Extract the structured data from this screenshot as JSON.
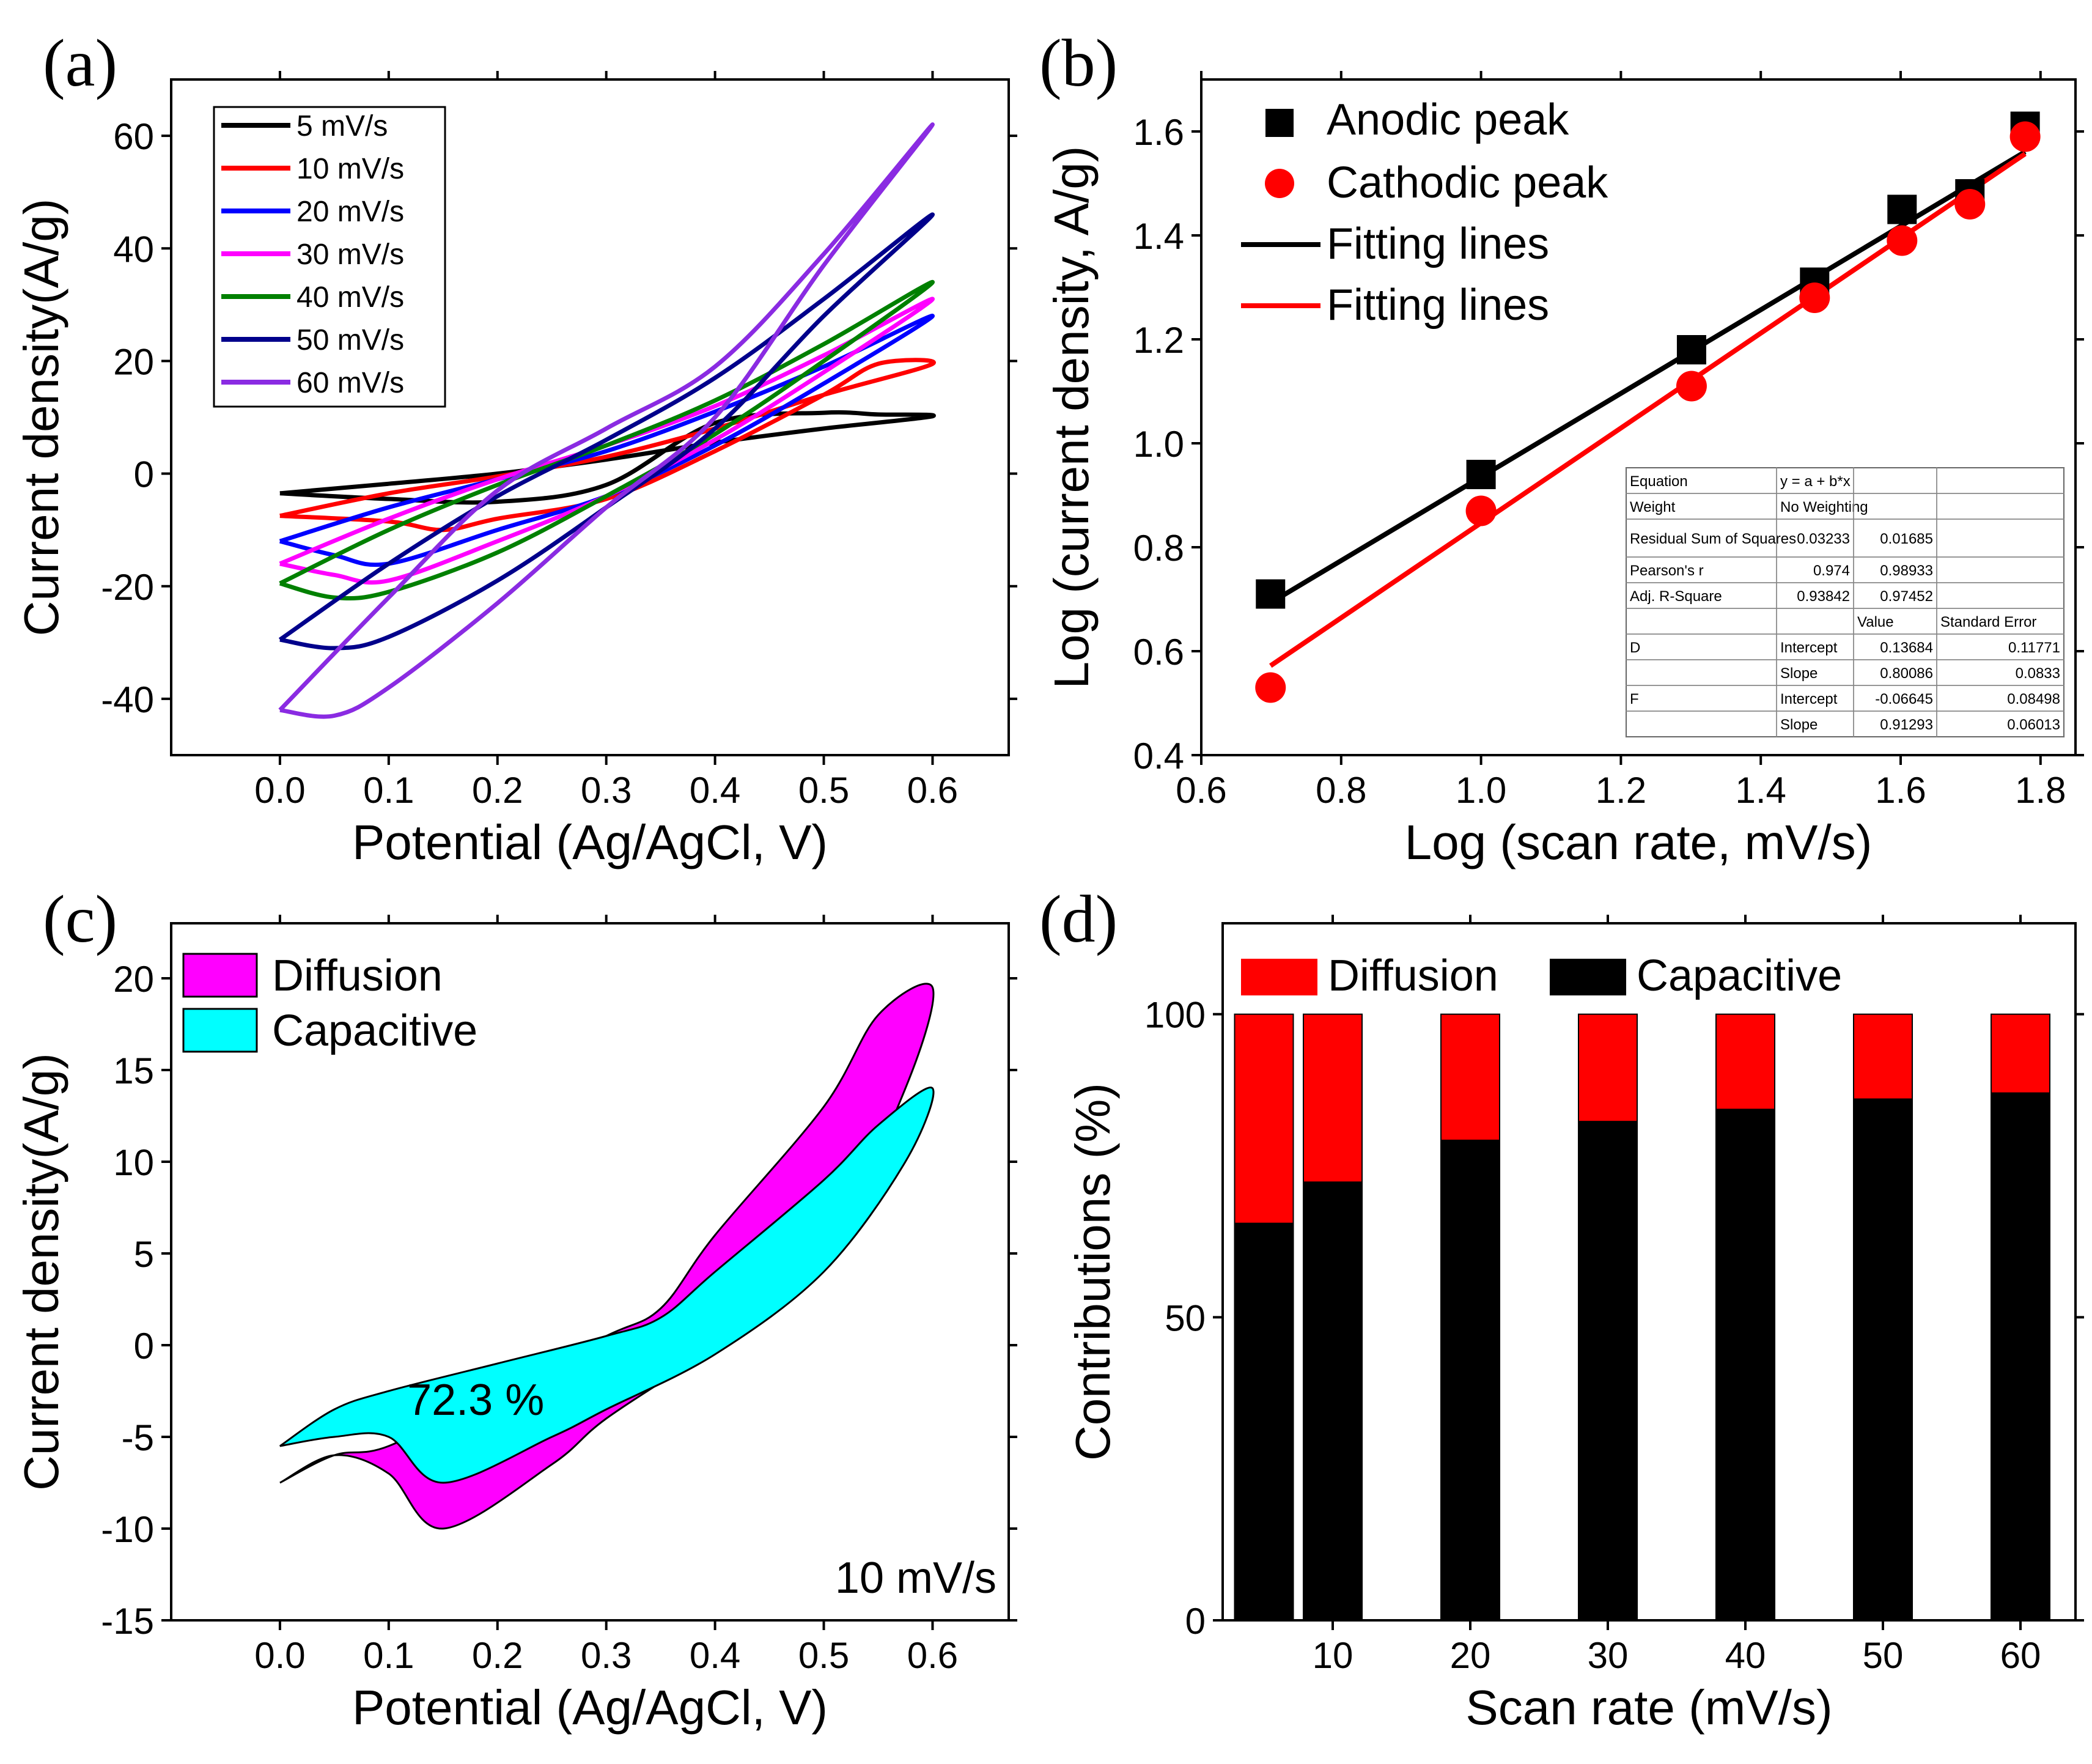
{
  "figure": {
    "panels": [
      "(a)",
      "(b)",
      "(c)",
      "(d)"
    ]
  },
  "chart_data": [
    {
      "panel": "(a)",
      "type": "line",
      "title": "",
      "xlabel": "Potential (Ag/AgCl, V)",
      "ylabel": "Current density(A/g)",
      "xlim": [
        -0.1,
        0.67
      ],
      "ylim": [
        -50,
        70
      ],
      "xticks": [
        "0.0",
        "0.1",
        "0.2",
        "0.3",
        "0.4",
        "0.5",
        "0.6"
      ],
      "yticks": [
        "-40",
        "-20",
        "0",
        "20",
        "40",
        "60"
      ],
      "legend_position": "top-left",
      "series": [
        {
          "name": "5 mV/s",
          "color": "#000000",
          "vertex": [
            0.6,
            10.2
          ],
          "start": -3.5,
          "upper": [
            [
              0.0,
              -3.5
            ],
            [
              0.1,
              -1.8
            ],
            [
              0.2,
              0.0
            ],
            [
              0.3,
              2.5
            ],
            [
              0.4,
              5.5
            ],
            [
              0.5,
              8
            ],
            [
              0.6,
              10.2
            ]
          ],
          "lower": [
            [
              0.6,
              10.2
            ],
            [
              0.55,
              10.5
            ],
            [
              0.5,
              10.8
            ],
            [
              0.4,
              9
            ],
            [
              0.3,
              -2
            ],
            [
              0.2,
              -5
            ],
            [
              0.1,
              -4.5
            ],
            [
              0.0,
              -3.5
            ]
          ]
        },
        {
          "name": "10 mV/s",
          "color": "#ff0000",
          "vertex": [
            0.6,
            19.5
          ],
          "start": -7.5,
          "upper": [
            [
              0.0,
              -7.5
            ],
            [
              0.1,
              -3.5
            ],
            [
              0.2,
              -0.5
            ],
            [
              0.3,
              3
            ],
            [
              0.4,
              8
            ],
            [
              0.5,
              14
            ],
            [
              0.6,
              19.5
            ]
          ],
          "lower": [
            [
              0.6,
              19.5
            ],
            [
              0.55,
              19.5
            ],
            [
              0.5,
              14
            ],
            [
              0.4,
              4
            ],
            [
              0.3,
              -4.5
            ],
            [
              0.2,
              -8
            ],
            [
              0.15,
              -10
            ],
            [
              0.1,
              -8.5
            ],
            [
              0.0,
              -7.5
            ]
          ]
        },
        {
          "name": "20 mV/s",
          "color": "#0000ff",
          "vertex": [
            0.6,
            28
          ],
          "start": -12,
          "upper": [
            [
              0.0,
              -12
            ],
            [
              0.1,
              -6
            ],
            [
              0.2,
              -1
            ],
            [
              0.3,
              4
            ],
            [
              0.4,
              11
            ],
            [
              0.5,
              19
            ],
            [
              0.6,
              28
            ]
          ],
          "lower": [
            [
              0.6,
              28
            ],
            [
              0.5,
              16
            ],
            [
              0.4,
              5
            ],
            [
              0.3,
              -4
            ],
            [
              0.2,
              -10
            ],
            [
              0.1,
              -16
            ],
            [
              0.05,
              -14.5
            ],
            [
              0.0,
              -12
            ]
          ]
        },
        {
          "name": "30 mV/s",
          "color": "#ff00ff",
          "vertex": [
            0.6,
            31
          ],
          "start": -16,
          "upper": [
            [
              0.0,
              -16
            ],
            [
              0.1,
              -8
            ],
            [
              0.2,
              -1
            ],
            [
              0.3,
              5
            ],
            [
              0.4,
              12
            ],
            [
              0.5,
              21
            ],
            [
              0.6,
              31
            ]
          ],
          "lower": [
            [
              0.6,
              31
            ],
            [
              0.5,
              18
            ],
            [
              0.4,
              6
            ],
            [
              0.3,
              -4
            ],
            [
              0.2,
              -12
            ],
            [
              0.1,
              -19
            ],
            [
              0.05,
              -18
            ],
            [
              0.0,
              -16
            ]
          ]
        },
        {
          "name": "40 mV/s",
          "color": "#008000",
          "vertex": [
            0.6,
            34
          ],
          "start": -19.5,
          "upper": [
            [
              0.0,
              -19.5
            ],
            [
              0.1,
              -10
            ],
            [
              0.2,
              -2
            ],
            [
              0.3,
              5
            ],
            [
              0.4,
              13
            ],
            [
              0.5,
              23
            ],
            [
              0.6,
              34
            ]
          ],
          "lower": [
            [
              0.6,
              34
            ],
            [
              0.5,
              20
            ],
            [
              0.4,
              7
            ],
            [
              0.3,
              -4
            ],
            [
              0.2,
              -14
            ],
            [
              0.1,
              -21
            ],
            [
              0.05,
              -22
            ],
            [
              0.0,
              -19.5
            ]
          ]
        },
        {
          "name": "50 mV/s",
          "color": "#00008b",
          "vertex": [
            0.6,
            46
          ],
          "start": -29.5,
          "upper": [
            [
              0.0,
              -29.5
            ],
            [
              0.1,
              -16
            ],
            [
              0.2,
              -4
            ],
            [
              0.3,
              6
            ],
            [
              0.4,
              17
            ],
            [
              0.5,
              31
            ],
            [
              0.6,
              46
            ]
          ],
          "lower": [
            [
              0.6,
              46
            ],
            [
              0.5,
              28
            ],
            [
              0.4,
              8
            ],
            [
              0.3,
              -6
            ],
            [
              0.2,
              -19
            ],
            [
              0.1,
              -29
            ],
            [
              0.05,
              -31
            ],
            [
              0.0,
              -29.5
            ]
          ]
        },
        {
          "name": "60 mV/s",
          "color": "#8a2be2",
          "vertex": [
            0.6,
            62
          ],
          "start": -42,
          "upper": [
            [
              0.0,
              -42
            ],
            [
              0.1,
              -22
            ],
            [
              0.2,
              -3
            ],
            [
              0.3,
              8
            ],
            [
              0.4,
              19
            ],
            [
              0.5,
              39
            ],
            [
              0.6,
              62
            ]
          ],
          "lower": [
            [
              0.6,
              62
            ],
            [
              0.5,
              37
            ],
            [
              0.4,
              10
            ],
            [
              0.3,
              -6
            ],
            [
              0.2,
              -23
            ],
            [
              0.1,
              -38
            ],
            [
              0.05,
              -43
            ],
            [
              0.0,
              -42
            ]
          ]
        }
      ]
    },
    {
      "panel": "(b)",
      "type": "scatter",
      "title": "",
      "xlabel": "Log (scan rate, mV/s)",
      "ylabel": "Log (current density, A/g)",
      "xlim": [
        0.6,
        1.85
      ],
      "ylim": [
        0.4,
        1.7
      ],
      "xticks": [
        "0.6",
        "0.8",
        "1.0",
        "1.2",
        "1.4",
        "1.6",
        "1.8"
      ],
      "yticks": [
        "0.4",
        "0.6",
        "0.8",
        "1.0",
        "1.2",
        "1.4",
        "1.6"
      ],
      "legend_position": "top-left",
      "series": [
        {
          "name": "Anodic peak",
          "marker": "square",
          "color": "#000000",
          "x": [
            0.699,
            1.0,
            1.301,
            1.477,
            1.602,
            1.699,
            1.778
          ],
          "y": [
            0.71,
            0.94,
            1.18,
            1.31,
            1.45,
            1.48,
            1.61
          ]
        },
        {
          "name": "Cathodic peak",
          "marker": "circle",
          "color": "#ff0000",
          "x": [
            0.699,
            1.0,
            1.301,
            1.477,
            1.602,
            1.699,
            1.778
          ],
          "y": [
            0.53,
            0.87,
            1.11,
            1.28,
            1.39,
            1.46,
            1.59
          ]
        },
        {
          "name": "Fitting lines",
          "type": "line",
          "color": "#000000",
          "x": [
            0.699,
            1.778
          ],
          "y": [
            0.693,
            1.561
          ]
        },
        {
          "name": "Fitting lines",
          "type": "line",
          "color": "#ff0000",
          "x": [
            0.699,
            1.778
          ],
          "y": [
            0.572,
            1.557
          ]
        }
      ],
      "fit_table": [
        [
          "Equation",
          "y = a + b*x",
          "",
          ""
        ],
        [
          "Weight",
          "No Weighting",
          "",
          ""
        ],
        [
          "Residual Sum of Squares",
          "0.03233",
          "0.01685",
          ""
        ],
        [
          "Pearson's r",
          "0.974",
          "0.98933",
          ""
        ],
        [
          "Adj. R-Square",
          "0.93842",
          "0.97452",
          ""
        ],
        [
          "",
          "",
          "Value",
          "Standard Error"
        ],
        [
          "D",
          "Intercept",
          "0.13684",
          "0.11771"
        ],
        [
          "",
          "Slope",
          "0.80086",
          "0.0833"
        ],
        [
          "F",
          "Intercept",
          "-0.06645",
          "0.08498"
        ],
        [
          "",
          "Slope",
          "0.91293",
          "0.06013"
        ]
      ]
    },
    {
      "panel": "(c)",
      "type": "area",
      "title": "",
      "xlabel": "Potential (Ag/AgCl, V)",
      "ylabel": "Current density(A/g)",
      "xlim": [
        -0.1,
        0.67
      ],
      "ylim": [
        -15,
        23
      ],
      "xticks": [
        "0.0",
        "0.1",
        "0.2",
        "0.3",
        "0.4",
        "0.5",
        "0.6"
      ],
      "yticks": [
        "-15",
        "-10",
        "-5",
        "0",
        "5",
        "10",
        "15",
        "20"
      ],
      "legend_position": "top-left",
      "annotation": "72.3 %",
      "scan_rate_label": "10 mV/s",
      "series": [
        {
          "name": "Diffusion",
          "color": "#ff00ff",
          "upper": [
            [
              0.0,
              -7.5
            ],
            [
              0.05,
              -6
            ],
            [
              0.1,
              -5.5
            ],
            [
              0.2,
              -2.5
            ],
            [
              0.3,
              0.5
            ],
            [
              0.35,
              2
            ],
            [
              0.4,
              6
            ],
            [
              0.5,
              13
            ],
            [
              0.55,
              18
            ],
            [
              0.6,
              19.5
            ]
          ],
          "lower": [
            [
              0.6,
              19.5
            ],
            [
              0.575,
              14
            ],
            [
              0.5,
              5
            ],
            [
              0.4,
              0
            ],
            [
              0.3,
              -4
            ],
            [
              0.25,
              -6.5
            ],
            [
              0.15,
              -10
            ],
            [
              0.1,
              -7
            ],
            [
              0.05,
              -6
            ],
            [
              0.0,
              -7.5
            ]
          ]
        },
        {
          "name": "Capacitive",
          "color": "#00ffff",
          "upper": [
            [
              0.0,
              -5.5
            ],
            [
              0.05,
              -3.5
            ],
            [
              0.1,
              -2.5
            ],
            [
              0.2,
              -1
            ],
            [
              0.3,
              0.5
            ],
            [
              0.35,
              1.5
            ],
            [
              0.4,
              4
            ],
            [
              0.5,
              9
            ],
            [
              0.55,
              12
            ],
            [
              0.6,
              14
            ]
          ],
          "lower": [
            [
              0.6,
              14
            ],
            [
              0.575,
              10
            ],
            [
              0.5,
              4
            ],
            [
              0.4,
              -0.5
            ],
            [
              0.3,
              -3.5
            ],
            [
              0.25,
              -5
            ],
            [
              0.15,
              -7.5
            ],
            [
              0.1,
              -5
            ],
            [
              0.05,
              -5
            ],
            [
              0.0,
              -5.5
            ]
          ]
        }
      ]
    },
    {
      "panel": "(d)",
      "type": "bar",
      "title": "",
      "xlabel": "Scan rate (mV/s)",
      "ylabel": "Contributions (%)",
      "xlim": [
        2,
        64
      ],
      "ylim": [
        0,
        115
      ],
      "xticks": [
        "10",
        "20",
        "30",
        "40",
        "50",
        "60"
      ],
      "yticks": [
        "0",
        "50",
        "100"
      ],
      "legend_position": "top",
      "categories": [
        5,
        10,
        20,
        30,
        40,
        50,
        60
      ],
      "series": [
        {
          "name": "Capacitive",
          "color": "#000000",
          "values": [
            65.5,
            72.3,
            79.2,
            82.3,
            84.3,
            86.0,
            87.0
          ]
        },
        {
          "name": "Diffusion",
          "color": "#ff0000",
          "values": [
            34.5,
            27.7,
            20.8,
            17.7,
            15.7,
            14.0,
            13.0
          ]
        }
      ]
    }
  ]
}
